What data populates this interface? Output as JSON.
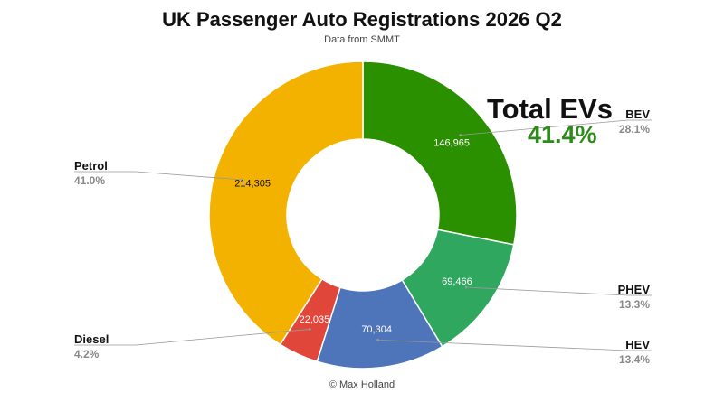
{
  "header": {
    "title": "UK Passenger Auto Registrations 2026 Q2",
    "subtitle": "Data from SMMT"
  },
  "callout": {
    "title": "Total EVs",
    "value": "41.4%"
  },
  "footer": {
    "credit": "© Max Holland"
  },
  "colors": {
    "BEV": "#2a9000",
    "PHEV": "#30a75e",
    "HEV": "#4e74b9",
    "Diesel": "#e0463a",
    "Petrol": "#f4b200",
    "callout_value": "#2e8b1b",
    "percent_text": "#888888"
  },
  "chart_data": {
    "type": "pie",
    "donut": true,
    "title": "UK Passenger Auto Registrations 2026 Q2",
    "subtitle": "Data from SMMT",
    "slices": [
      {
        "name": "BEV",
        "value": 146965,
        "value_label": "146,965",
        "percent": "28.1%",
        "color": "#2a9000"
      },
      {
        "name": "PHEV",
        "value": 69466,
        "value_label": "69,466",
        "percent": "13.3%",
        "color": "#30a75e"
      },
      {
        "name": "HEV",
        "value": 70304,
        "value_label": "70,304",
        "percent": "13.4%",
        "color": "#4e74b9"
      },
      {
        "name": "Diesel",
        "value": 22035,
        "value_label": "22,035",
        "percent": "4.2%",
        "color": "#e0463a"
      },
      {
        "name": "Petrol",
        "value": 214305,
        "value_label": "214,305",
        "percent": "41.0%",
        "color": "#f4b200"
      }
    ]
  }
}
